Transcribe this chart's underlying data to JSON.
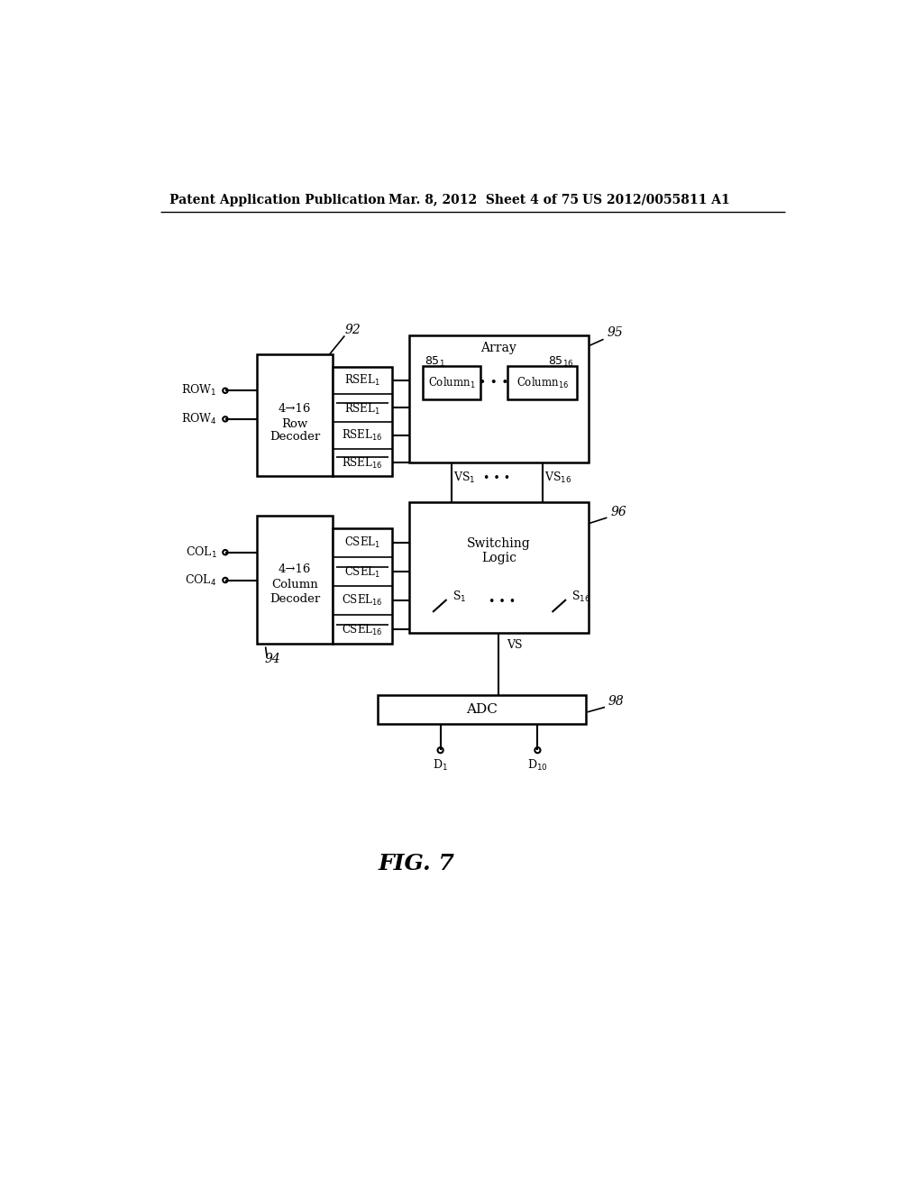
{
  "bg_color": "#ffffff",
  "header_left": "Patent Application Publication",
  "header_mid": "Mar. 8, 2012  Sheet 4 of 75",
  "header_right": "US 2012/0055811 A1",
  "fig_label": "FIG. 7",
  "lw_main": 1.8,
  "lw_thin": 1.2,
  "lw_conn": 1.5
}
